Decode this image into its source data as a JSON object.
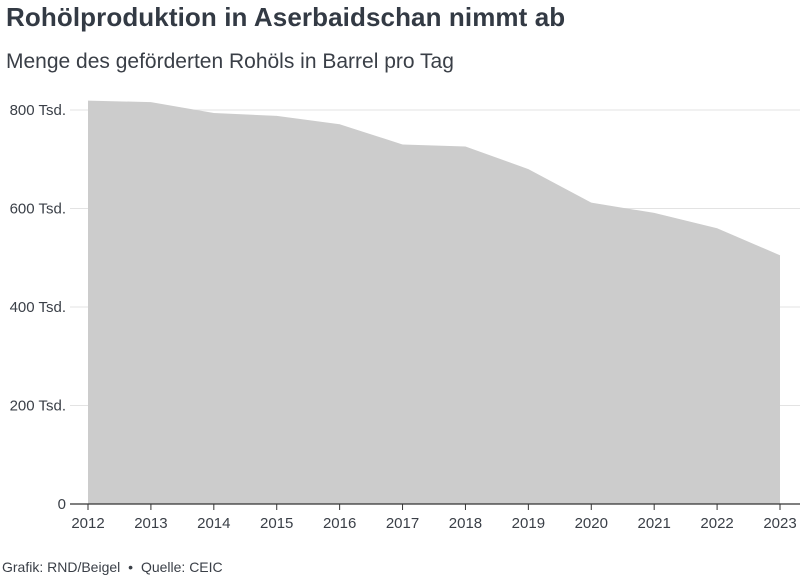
{
  "chart_data": {
    "type": "area",
    "title": "Rohölproduktion in Aserbaidschan nimmt ab",
    "subtitle": "Menge des geförderten Rohöls in Barrel pro Tag",
    "xlabel": "",
    "ylabel": "",
    "x": [
      2012,
      2013,
      2014,
      2015,
      2016,
      2017,
      2018,
      2019,
      2020,
      2021,
      2022,
      2023
    ],
    "series": [
      {
        "values": [
          819000,
          816000,
          794000,
          788000,
          771000,
          730000,
          726000,
          680000,
          612000,
          591000,
          560000,
          505000
        ]
      }
    ],
    "ylim": [
      0,
      800000
    ],
    "yticks": [
      0,
      200000,
      400000,
      600000,
      800000
    ],
    "ytick_labels": [
      "0",
      "200 Tsd.",
      "400 Tsd.",
      "600 Tsd.",
      "800 Tsd."
    ],
    "xtick_labels": [
      "2012",
      "2013",
      "2014",
      "2015",
      "2016",
      "2017",
      "2018",
      "2019",
      "2020",
      "2021",
      "2022",
      "2023"
    ],
    "grid": true,
    "fill_color": "#cccccc",
    "grid_color": "#e3e3e3",
    "axis_color": "#333333"
  },
  "footer": {
    "credit": "Grafik: RND/Beigel",
    "separator": "•",
    "source": "Quelle: CEIC"
  }
}
